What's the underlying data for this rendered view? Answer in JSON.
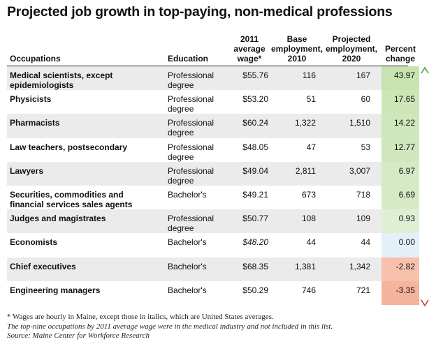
{
  "title": "Projected job growth in top-paying, non-medical professions",
  "headers": {
    "occupations": "Occupations",
    "education": "Education",
    "wage": [
      "2011",
      "average",
      "wage*"
    ],
    "base": [
      "Base",
      "employment,",
      "2010"
    ],
    "projected": [
      "Projected",
      "employment,",
      "2020"
    ],
    "percent": [
      "Percent",
      "change"
    ]
  },
  "colors": {
    "positive_strong": "#c6e3b0",
    "positive_light": "#e6f2dc",
    "zero": "#e4f0f8",
    "negative_strong": "#f5b49c",
    "negative_light": "#fbe0d4",
    "arrow_up": "#3aa844",
    "arrow_down": "#d9342b"
  },
  "chart_data": {
    "type": "table",
    "title": "Projected job growth in top-paying, non-medical professions",
    "columns": [
      "Occupations",
      "Education",
      "2011 average wage*",
      "Base employment, 2010",
      "Projected employment, 2020",
      "Percent change"
    ],
    "rows": [
      {
        "occupation": [
          "Medical scientists, except",
          "epidemiologists"
        ],
        "education": [
          "Professional",
          "degree"
        ],
        "wage": "$55.76",
        "wage_us": false,
        "base": "116",
        "projected": "167",
        "percent": "43.97",
        "pct_value": 43.97
      },
      {
        "occupation": [
          "Physicists"
        ],
        "education": [
          "Professional",
          "degree"
        ],
        "wage": "$53.20",
        "wage_us": false,
        "base": "51",
        "projected": "60",
        "percent": "17.65",
        "pct_value": 17.65
      },
      {
        "occupation": [
          "Pharmacists"
        ],
        "education": [
          "Professional",
          "degree"
        ],
        "wage": "$60.24",
        "wage_us": false,
        "base": "1,322",
        "projected": "1,510",
        "percent": "14.22",
        "pct_value": 14.22
      },
      {
        "occupation": [
          "Law teachers, postsecondary"
        ],
        "education": [
          "Professional",
          "degree"
        ],
        "wage": "$48.05",
        "wage_us": false,
        "base": "47",
        "projected": "53",
        "percent": "12.77",
        "pct_value": 12.77
      },
      {
        "occupation": [
          "Lawyers"
        ],
        "education": [
          "Professional",
          "degree"
        ],
        "wage": "$49.04",
        "wage_us": false,
        "base": "2,811",
        "projected": "3,007",
        "percent": "6.97",
        "pct_value": 6.97
      },
      {
        "occupation": [
          "Securities, commodities and",
          "financial services sales agents"
        ],
        "education": [
          "Bachelor's"
        ],
        "wage": "$49.21",
        "wage_us": false,
        "base": "673",
        "projected": "718",
        "percent": "6.69",
        "pct_value": 6.69
      },
      {
        "occupation": [
          "Judges and magistrates"
        ],
        "education": [
          "Professional",
          "degree"
        ],
        "wage": "$50.77",
        "wage_us": false,
        "base": "108",
        "projected": "109",
        "percent": "0.93",
        "pct_value": 0.93
      },
      {
        "occupation": [
          "Economists"
        ],
        "education": [
          "Bachelor's"
        ],
        "wage": "$48.20",
        "wage_us": true,
        "base": "44",
        "projected": "44",
        "percent": "0.00",
        "pct_value": 0.0
      },
      {
        "occupation": [
          "Chief executives"
        ],
        "education": [
          "Bachelor's"
        ],
        "wage": "$68.35",
        "wage_us": false,
        "base": "1,381",
        "projected": "1,342",
        "percent": "-2.82",
        "pct_value": -2.82
      },
      {
        "occupation": [
          "Engineering managers"
        ],
        "education": [
          "Bachelor's"
        ],
        "wage": "$50.29",
        "wage_us": false,
        "base": "746",
        "projected": "721",
        "percent": "-3.35",
        "pct_value": -3.35
      }
    ]
  },
  "notes": [
    "* Wages are hourly in Maine, except those in italics, which are United States averages.",
    "The top-nine occupations by 2011 average wage were in the medical industry and not included in this list.",
    "Source: Maine Center for Workforce Research"
  ]
}
